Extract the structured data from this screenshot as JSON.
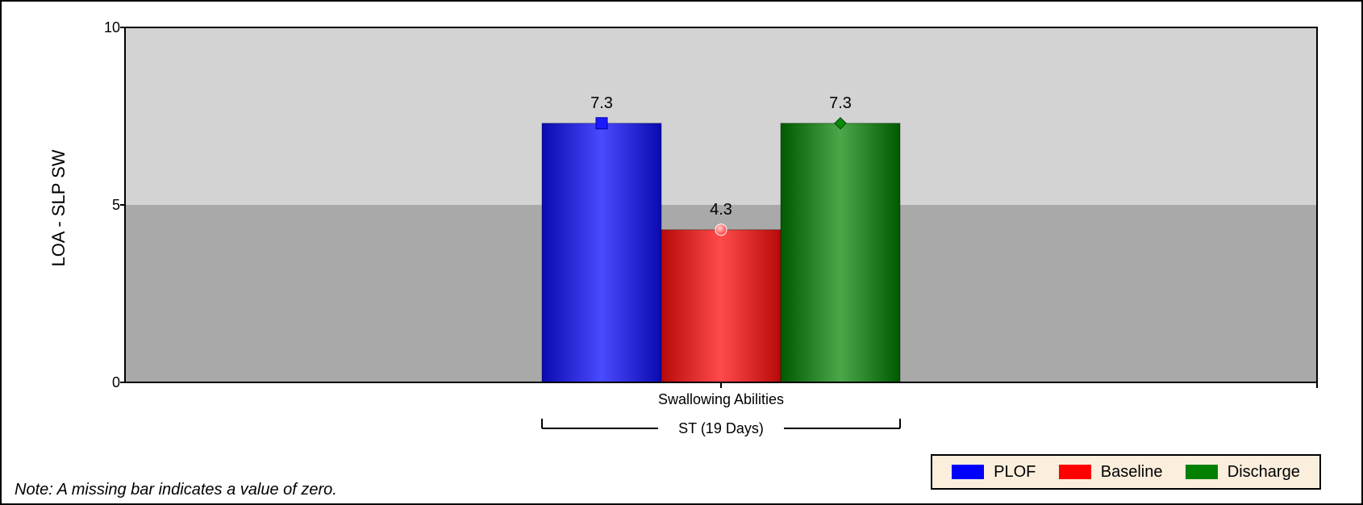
{
  "chart_data": {
    "type": "bar",
    "ylabel": "LOA - SLP SW",
    "ylim": [
      0,
      10
    ],
    "yticks": [
      "0",
      "5",
      "10"
    ],
    "categories": [
      "Swallowing Abilities"
    ],
    "group_label": "ST (19 Days)",
    "bands": [
      {
        "from": 0,
        "to": 5,
        "color": "#a9a9a9"
      },
      {
        "from": 5,
        "to": 10,
        "color": "#d3d3d3"
      }
    ],
    "series": [
      {
        "name": "PLOF",
        "values": [
          7.3
        ],
        "labels": [
          "7.3"
        ],
        "color": "#0000ff",
        "marker": "square"
      },
      {
        "name": "Baseline",
        "values": [
          4.3
        ],
        "labels": [
          "4.3"
        ],
        "color": "#ff0000",
        "marker": "circle"
      },
      {
        "name": "Discharge",
        "values": [
          7.3
        ],
        "labels": [
          "7.3"
        ],
        "color": "#008000",
        "marker": "diamond"
      }
    ],
    "legend": "bottom-right",
    "grid": false
  },
  "note": "Note: A missing bar indicates a value of zero.",
  "legend_items": [
    {
      "label": "PLOF",
      "color": "#0000ff"
    },
    {
      "label": "Baseline",
      "color": "#ff0000"
    },
    {
      "label": "Discharge",
      "color": "#008000"
    }
  ]
}
